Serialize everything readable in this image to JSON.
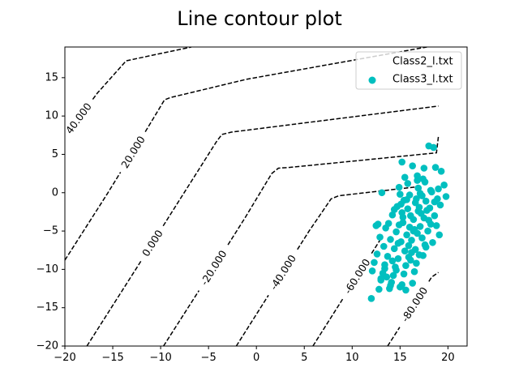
{
  "chart_data": {
    "type": "contour",
    "title": "Line contour plot",
    "xlabel": "",
    "ylabel": "",
    "xlim": [
      -20,
      22
    ],
    "ylim": [
      -20,
      19
    ],
    "x_ticks": [
      -20,
      -15,
      -10,
      -5,
      0,
      5,
      10,
      15,
      20
    ],
    "y_ticks": [
      -20,
      -15,
      -10,
      -5,
      0,
      5,
      10,
      15
    ],
    "grid": false,
    "legend": {
      "placement": "top-right",
      "entries": [
        {
          "label": "Class2_l.txt",
          "marker": "none",
          "color": "#00bfbf"
        },
        {
          "label": "Class3_l.txt",
          "marker": "circle",
          "color": "#00bfbf"
        }
      ]
    },
    "contours": [
      {
        "level": 40,
        "label": "40.000",
        "points": [
          [
            -20,
            7.3
          ],
          [
            -16.6,
            13
          ],
          [
            -13.6,
            17.2
          ],
          [
            -6.8,
            19
          ]
        ]
      },
      {
        "level": 20,
        "label": "20.000",
        "points": [
          [
            -20,
            -8.8
          ],
          [
            -15.6,
            -0.2
          ],
          [
            -12.3,
            6.5
          ],
          [
            -9.6,
            12.1
          ],
          [
            -9,
            12.4
          ],
          [
            -1,
            14.8
          ],
          [
            17.8,
            19
          ]
        ]
      },
      {
        "level": 0,
        "label": "0.000",
        "points": [
          [
            -17.7,
            -20
          ],
          [
            -12.4,
            -9.6
          ],
          [
            -7.9,
            -0.7
          ],
          [
            -4.2,
            6.6
          ],
          [
            -3.6,
            7.6
          ],
          [
            -2.6,
            7.9
          ],
          [
            19,
            11.3
          ]
        ]
      },
      {
        "level": -20,
        "label": "-20.000",
        "points": [
          [
            -9.7,
            -20
          ],
          [
            -5.4,
            -11.6
          ],
          [
            -1.2,
            -3.3
          ],
          [
            1.6,
            2.5
          ],
          [
            2.3,
            3.2
          ],
          [
            3.5,
            3.3
          ],
          [
            18.8,
            5.2
          ],
          [
            19,
            7.3
          ]
        ]
      },
      {
        "level": -40,
        "label": "-40.000",
        "points": [
          [
            -2.1,
            -20
          ],
          [
            1.6,
            -12.7
          ],
          [
            5.5,
            -5
          ],
          [
            7.8,
            -0.8
          ],
          [
            8.6,
            -0.4
          ],
          [
            17,
            0.8
          ]
        ]
      },
      {
        "level": -60,
        "label": "-60.000",
        "points": [
          [
            5.9,
            -20
          ],
          [
            9.6,
            -12.7
          ],
          [
            13,
            -6
          ]
        ]
      },
      {
        "level": -80,
        "label": "-80.000",
        "points": [
          [
            13.7,
            -20
          ],
          [
            15.5,
            -16.5
          ],
          [
            17.3,
            -13
          ],
          [
            18.3,
            -11
          ],
          [
            19,
            -10.4
          ]
        ]
      }
    ],
    "series": [
      {
        "name": "Class3_l.txt",
        "type": "scatter",
        "color": "#00bfbf",
        "x": [
          18.0,
          18.5,
          15.2,
          16.3,
          17.5,
          18.7,
          19.3,
          15.5,
          17.4,
          16.8,
          19.6,
          14.9,
          13.1,
          15.0,
          16.0,
          17.1,
          18.2,
          19.0,
          19.8,
          15.4,
          16.6,
          17.7,
          18.9,
          14.7,
          15.8,
          16.9,
          18.1,
          19.2,
          14.2,
          15.3,
          16.4,
          17.5,
          18.6,
          13.8,
          14.9,
          16.0,
          17.1,
          18.2,
          12.7,
          13.5,
          14.6,
          15.7,
          16.8,
          17.9,
          12.9,
          14.0,
          15.1,
          16.2,
          17.3,
          13.3,
          14.4,
          15.5,
          16.6,
          17.7,
          12.6,
          13.7,
          14.8,
          15.9,
          17.0,
          12.3,
          13.4,
          14.5,
          15.6,
          16.7,
          12.1,
          13.2,
          14.3,
          15.4,
          16.5,
          13.0,
          14.1,
          15.2,
          16.3,
          12.8,
          13.9,
          15.0,
          12.0,
          13.0,
          14.0,
          15.6,
          13.4,
          14.6,
          16.1,
          17.4,
          17.6,
          18.4,
          19.1,
          16.2,
          15.9,
          17.2,
          18.0,
          16.7,
          15.1,
          14.4,
          16.9,
          15.8,
          17.8,
          18.8,
          16.4,
          15.3,
          17.0,
          14.8,
          16.5,
          17.3,
          15.7,
          18.3,
          16.1,
          14.2,
          17.6,
          15.2,
          16.8,
          13.6,
          18.6,
          12.5
        ],
        "y": [
          6.1,
          5.9,
          4.0,
          3.5,
          3.2,
          3.3,
          2.8,
          2.0,
          1.8,
          1.6,
          1.0,
          0.7,
          0.0,
          -0.2,
          -0.3,
          -0.1,
          0.3,
          0.5,
          -0.5,
          -1.0,
          -1.3,
          -1.1,
          -0.8,
          -1.8,
          -2.1,
          -2.4,
          -2.0,
          -1.6,
          -2.9,
          -3.2,
          -3.5,
          -3.3,
          -3.0,
          -4.0,
          -4.2,
          -4.5,
          -4.4,
          -4.1,
          -4.1,
          -4.6,
          -5.1,
          -5.5,
          -5.3,
          -5.0,
          -5.8,
          -6.1,
          -6.4,
          -6.2,
          -5.9,
          -7.0,
          -7.3,
          -7.6,
          -7.4,
          -7.1,
          -8.0,
          -8.3,
          -8.6,
          -8.4,
          -8.1,
          -9.1,
          -9.4,
          -9.7,
          -9.5,
          -9.2,
          -10.2,
          -10.5,
          -10.8,
          -10.6,
          -10.3,
          -11.4,
          -11.7,
          -12.0,
          -11.8,
          -12.6,
          -12.5,
          -12.3,
          -13.8,
          -11.2,
          -12.1,
          -12.7,
          -9.9,
          -10.1,
          -8.8,
          -8.2,
          -6.8,
          -6.5,
          -5.5,
          -7.8,
          -6.9,
          -2.7,
          -3.6,
          -0.8,
          -1.5,
          -2.2,
          0.6,
          1.2,
          -2.3,
          -4.3,
          -5.0,
          -3.9,
          -1.9,
          -6.6,
          -4.8,
          -0.4,
          -0.9,
          0.1,
          -3.0,
          -8.9,
          1.4,
          -2.6,
          2.2,
          -11.0,
          -1.2,
          -4.3
        ]
      }
    ]
  }
}
